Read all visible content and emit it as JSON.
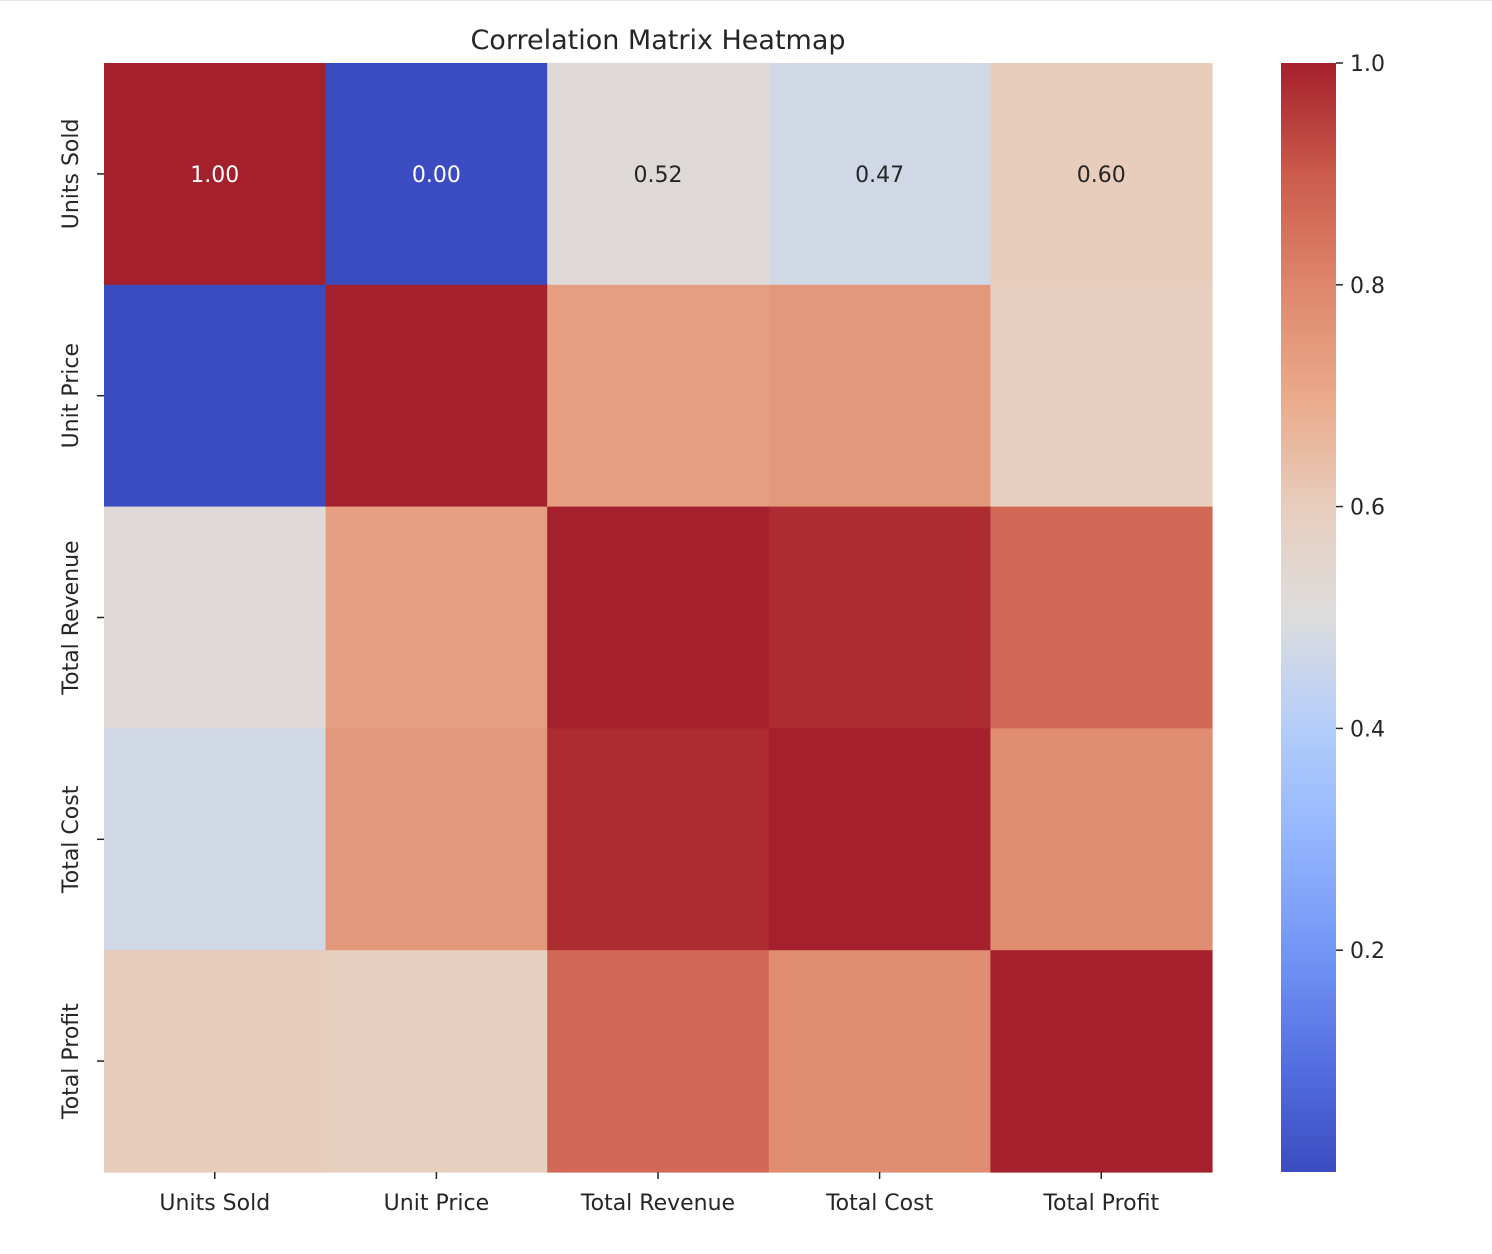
{
  "chart_data": {
    "type": "heatmap",
    "title": "Correlation Matrix Heatmap",
    "colormap": "coolwarm",
    "rows": [
      "Units Sold",
      "Unit Price",
      "Total Revenue",
      "Total Cost",
      "Total Profit"
    ],
    "columns": [
      "Units Sold",
      "Unit Price",
      "Total Revenue",
      "Total Cost",
      "Total Profit"
    ],
    "values": [
      [
        1.0,
        0.0,
        0.52,
        0.47,
        0.6
      ],
      [
        0.0,
        1.0,
        0.73,
        0.75,
        0.59
      ],
      [
        0.52,
        0.73,
        1.0,
        0.98,
        0.87
      ],
      [
        0.47,
        0.75,
        0.98,
        1.0,
        0.78
      ],
      [
        0.6,
        0.59,
        0.87,
        0.78,
        1.0
      ]
    ],
    "annotated_row": 0,
    "annotations": [
      "1.00",
      "0.00",
      "0.52",
      "0.47",
      "0.60"
    ],
    "colorbar": {
      "vmin": 0.0,
      "vmax": 1.0,
      "ticks": [
        0.2,
        0.4,
        0.6,
        0.8,
        1.0
      ],
      "tick_labels": [
        "0.2",
        "0.4",
        "0.6",
        "0.8",
        "1.0"
      ]
    }
  }
}
